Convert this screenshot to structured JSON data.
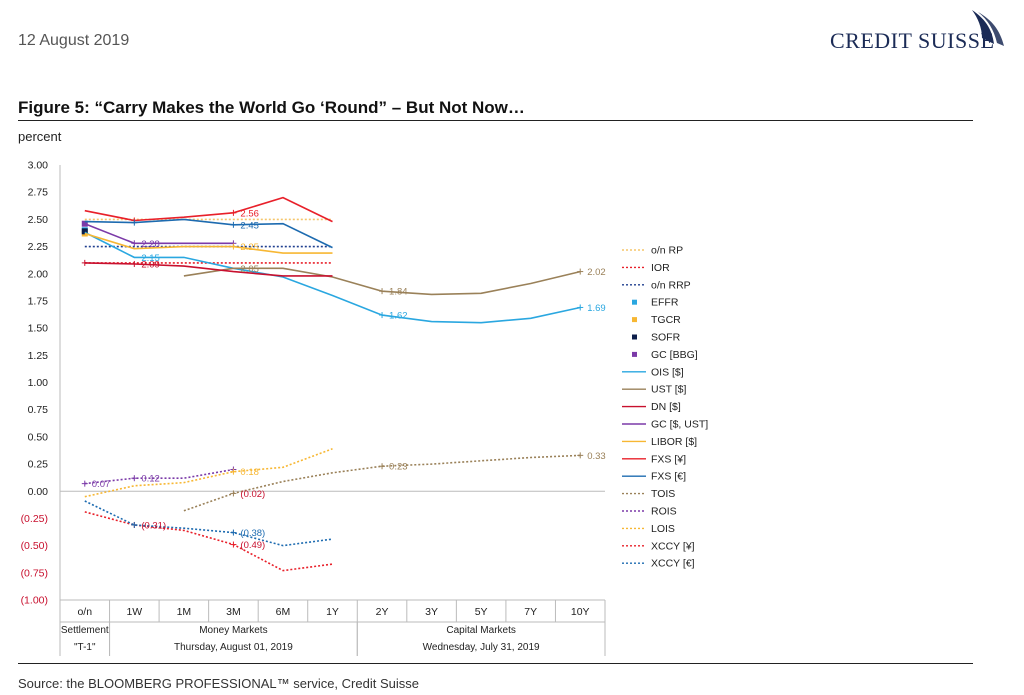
{
  "header": {
    "date": "12 August 2019",
    "brand": "CREDIT SUISSE",
    "figure_title": "Figure 5: “Carry Makes the World Go ‘Round” – But Not Now…",
    "unit_label": "percent",
    "source": "Source: the BLOOMBERG PROFESSIONAL™ service, Credit Suisse"
  },
  "chart_data": {
    "type": "line",
    "ylim": [
      -1.0,
      3.0
    ],
    "y_ticks": [
      {
        "v": 3.0,
        "label": "3.00"
      },
      {
        "v": 2.75,
        "label": "2.75"
      },
      {
        "v": 2.5,
        "label": "2.50"
      },
      {
        "v": 2.25,
        "label": "2.25"
      },
      {
        "v": 2.0,
        "label": "2.00"
      },
      {
        "v": 1.75,
        "label": "1.75"
      },
      {
        "v": 1.5,
        "label": "1.50"
      },
      {
        "v": 1.25,
        "label": "1.25"
      },
      {
        "v": 1.0,
        "label": "1.00"
      },
      {
        "v": 0.75,
        "label": "0.75"
      },
      {
        "v": 0.5,
        "label": "0.50"
      },
      {
        "v": 0.25,
        "label": "0.25"
      },
      {
        "v": 0.0,
        "label": "0.00"
      },
      {
        "v": -0.25,
        "label": "(0.25)"
      },
      {
        "v": -0.5,
        "label": "(0.50)"
      },
      {
        "v": -0.75,
        "label": "(0.75)"
      },
      {
        "v": -1.0,
        "label": "(1.00)"
      }
    ],
    "categories": [
      "o/n",
      "1W",
      "1M",
      "3M",
      "6M",
      "1Y",
      "2Y",
      "3Y",
      "5Y",
      "7Y",
      "10Y"
    ],
    "x_groups": [
      {
        "label": "Settlement",
        "sub": "\"T-1\"",
        "from": 0,
        "to": 0
      },
      {
        "label": "Money Markets",
        "sub": "Thursday, August 01, 2019",
        "from": 1,
        "to": 5
      },
      {
        "label": "Capital Markets",
        "sub": "Wednesday, July 31, 2019",
        "from": 6,
        "to": 10
      }
    ],
    "series": [
      {
        "name": "o/n RP",
        "style": "dotted",
        "color": "#f5c56a",
        "values": [
          2.5,
          2.5,
          2.5,
          2.5,
          2.5,
          2.5,
          null,
          null,
          null,
          null,
          null
        ],
        "markers": []
      },
      {
        "name": "IOR",
        "style": "dotted",
        "color": "#e8202a",
        "values": [
          2.1,
          2.1,
          2.1,
          2.1,
          2.1,
          2.1,
          null,
          null,
          null,
          null,
          null
        ],
        "markers": []
      },
      {
        "name": "o/n RRP",
        "style": "dotted",
        "color": "#1f3f8f",
        "values": [
          2.25,
          2.25,
          2.25,
          2.25,
          2.25,
          2.25,
          null,
          null,
          null,
          null,
          null
        ],
        "markers": []
      },
      {
        "name": "EFFR",
        "style": "square",
        "color": "#2aa7e0",
        "values": [
          2.4,
          null,
          null,
          null,
          null,
          null,
          null,
          null,
          null,
          null,
          null
        ],
        "markers": []
      },
      {
        "name": "TGCR",
        "style": "square",
        "color": "#f7b733",
        "values": [
          2.37,
          null,
          null,
          null,
          null,
          null,
          null,
          null,
          null,
          null,
          null
        ],
        "markers": []
      },
      {
        "name": "SOFR",
        "style": "square",
        "color": "#0c1e4a",
        "values": [
          2.39,
          null,
          null,
          null,
          null,
          null,
          null,
          null,
          null,
          null,
          null
        ],
        "markers": []
      },
      {
        "name": "GC [BBG]",
        "style": "square",
        "color": "#7b3aa8",
        "values": [
          2.46,
          null,
          null,
          null,
          null,
          null,
          null,
          null,
          null,
          null,
          null
        ],
        "markers": []
      },
      {
        "name": "OIS [$]",
        "style": "solid",
        "color": "#2aa7e0",
        "values": [
          2.38,
          2.15,
          2.15,
          2.05,
          1.97,
          1.8,
          1.62,
          1.56,
          1.55,
          1.59,
          1.69
        ],
        "markers": [
          6,
          10
        ]
      },
      {
        "name": "UST [$]",
        "style": "solid",
        "color": "#9a8159",
        "values": [
          null,
          null,
          1.98,
          2.05,
          2.05,
          1.97,
          1.84,
          1.81,
          1.82,
          1.91,
          2.02
        ],
        "markers": [
          6,
          10
        ]
      },
      {
        "name": "DN [$]",
        "style": "solid",
        "color": "#c8102e",
        "values": [
          2.1,
          2.09,
          2.07,
          2.02,
          1.98,
          1.98,
          null,
          null,
          null,
          null,
          null
        ],
        "markers": [
          0,
          1
        ]
      },
      {
        "name": "GC [$, UST]",
        "style": "solid",
        "color": "#7b3aa8",
        "values": [
          2.46,
          2.28,
          2.28,
          2.28,
          null,
          null,
          null,
          null,
          null,
          null,
          null
        ],
        "markers": [
          1,
          3
        ]
      },
      {
        "name": "LIBOR [$]",
        "style": "solid",
        "color": "#f7b733",
        "values": [
          2.37,
          2.23,
          2.25,
          2.25,
          2.19,
          2.19,
          null,
          null,
          null,
          null,
          null
        ],
        "markers": [
          3
        ]
      },
      {
        "name": "FXS [¥]",
        "style": "solid",
        "color": "#e8202a",
        "values": [
          2.58,
          2.49,
          2.52,
          2.56,
          2.7,
          2.48,
          null,
          null,
          null,
          null,
          null
        ],
        "markers": [
          1,
          3
        ]
      },
      {
        "name": "FXS [€]",
        "style": "solid",
        "color": "#1d6bb0",
        "values": [
          2.48,
          2.47,
          2.5,
          2.45,
          2.46,
          2.24,
          null,
          null,
          null,
          null,
          null
        ],
        "markers": [
          1,
          3
        ]
      },
      {
        "name": "TOIS",
        "style": "dotted",
        "color": "#9a8159",
        "values": [
          null,
          null,
          -0.18,
          -0.02,
          0.09,
          0.17,
          0.23,
          0.25,
          0.28,
          0.31,
          0.33
        ],
        "markers": [
          3,
          6,
          10
        ]
      },
      {
        "name": "ROIS",
        "style": "dotted",
        "color": "#7b3aa8",
        "values": [
          0.07,
          0.12,
          0.12,
          0.2,
          null,
          null,
          null,
          null,
          null,
          null,
          null
        ],
        "markers": [
          0,
          1,
          3
        ]
      },
      {
        "name": "LOIS",
        "style": "dotted",
        "color": "#f7b733",
        "values": [
          -0.05,
          0.05,
          0.08,
          0.18,
          0.22,
          0.39,
          null,
          null,
          null,
          null,
          null
        ],
        "markers": [
          3
        ]
      },
      {
        "name": "XCCY [¥]",
        "style": "dotted",
        "color": "#e8202a",
        "values": [
          -0.19,
          -0.31,
          -0.36,
          -0.49,
          -0.73,
          -0.67,
          null,
          null,
          null,
          null,
          null
        ],
        "markers": [
          1,
          3
        ]
      },
      {
        "name": "XCCY [€]",
        "style": "dotted",
        "color": "#1d6bb0",
        "values": [
          -0.09,
          -0.31,
          -0.34,
          -0.38,
          -0.5,
          -0.44,
          null,
          null,
          null,
          null,
          null
        ],
        "markers": [
          1,
          3
        ]
      }
    ],
    "data_labels": [
      {
        "series": "FXS [¥]",
        "x": "3M",
        "value": 2.56,
        "label": "2.56",
        "color": "#e8202a"
      },
      {
        "series": "FXS [€]",
        "x": "3M",
        "value": 2.45,
        "label": "2.45",
        "color": "#1d6bb0"
      },
      {
        "series": "GC [$, UST]",
        "x": "1W",
        "value": 2.28,
        "label": "2.28",
        "color": "#7b3aa8"
      },
      {
        "series": "LIBOR [$]",
        "x": "3M",
        "value": 2.25,
        "label": "2.25",
        "color": "#f7b733"
      },
      {
        "series": "OIS [$]",
        "x": "1W",
        "value": 2.15,
        "label": "2.15",
        "color": "#2aa7e0"
      },
      {
        "series": "DN [$]",
        "x": "1W",
        "value": 2.09,
        "label": "2.09",
        "color": "#c8102e"
      },
      {
        "series": "UST [$]",
        "x": "3M",
        "value": 2.05,
        "label": "2.05",
        "color": "#9a8159"
      },
      {
        "series": "UST [$]",
        "x": "2Y",
        "value": 1.84,
        "label": "1.84",
        "color": "#9a8159"
      },
      {
        "series": "UST [$]",
        "x": "10Y",
        "value": 2.02,
        "label": "2.02",
        "color": "#9a8159"
      },
      {
        "series": "OIS [$]",
        "x": "2Y",
        "value": 1.62,
        "label": "1.62",
        "color": "#2aa7e0"
      },
      {
        "series": "OIS [$]",
        "x": "10Y",
        "value": 1.69,
        "label": "1.69",
        "color": "#2aa7e0"
      },
      {
        "series": "TOIS",
        "x": "2Y",
        "value": 0.23,
        "label": "0.23",
        "color": "#9a8159"
      },
      {
        "series": "TOIS",
        "x": "10Y",
        "value": 0.33,
        "label": "0.33",
        "color": "#9a8159"
      },
      {
        "series": "ROIS",
        "x": "o/n",
        "value": 0.07,
        "label": "0.07",
        "color": "#7b3aa8"
      },
      {
        "series": "ROIS",
        "x": "1W",
        "value": 0.12,
        "label": "0.12",
        "color": "#7b3aa8"
      },
      {
        "series": "LOIS",
        "x": "3M",
        "value": 0.18,
        "label": "0.18",
        "color": "#f7b733"
      },
      {
        "series": "TOIS",
        "x": "3M",
        "value": -0.02,
        "label": "(0.02)",
        "color": "#c8102e"
      },
      {
        "series": "XCCY [¥]",
        "x": "1W",
        "value": -0.31,
        "label": "(0.31)",
        "color": "#c8102e"
      },
      {
        "series": "XCCY [€]",
        "x": "3M",
        "value": -0.38,
        "label": "(0.38)",
        "color": "#1d6bb0"
      },
      {
        "series": "XCCY [¥]",
        "x": "3M",
        "value": -0.49,
        "label": "(0.49)",
        "color": "#c8102e"
      }
    ],
    "legend_position": "right",
    "grid": false
  }
}
